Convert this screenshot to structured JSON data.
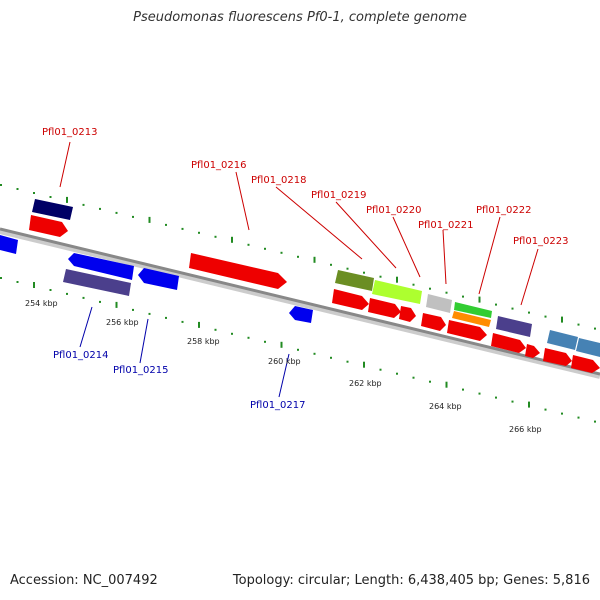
{
  "title": "Pseudomonas fluorescens Pf0-1, complete genome",
  "footer": {
    "accession": "Accession: NC_007492",
    "topology": "Topology: circular; Length: 6,438,405 bp; Genes: 5,816"
  },
  "axis": {
    "ticks": [
      "254 kbp",
      "256 kbp",
      "258 kbp",
      "260 kbp",
      "262 kbp",
      "264 kbp",
      "266 kbp"
    ]
  },
  "gene_labels": [
    {
      "text": "Pfl01_0213",
      "color": "#cc0000"
    },
    {
      "text": "Pfl01_0214",
      "color": "#0000aa"
    },
    {
      "text": "Pfl01_0215",
      "color": "#0000aa"
    },
    {
      "text": "Pfl01_0216",
      "color": "#cc0000"
    },
    {
      "text": "Pfl01_0217",
      "color": "#0000aa"
    },
    {
      "text": "Pfl01_0218",
      "color": "#cc0000"
    },
    {
      "text": "Pfl01_0219",
      "color": "#cc0000"
    },
    {
      "text": "Pfl01_0220",
      "color": "#cc0000"
    },
    {
      "text": "Pfl01_0221",
      "color": "#cc0000"
    },
    {
      "text": "Pfl01_0222",
      "color": "#cc0000"
    },
    {
      "text": "Pfl01_0223",
      "color": "#cc0000"
    }
  ],
  "colors": {
    "forward_strand": "#ee0000",
    "reverse_strand": "#0000ee",
    "backbone": "#888888",
    "ruler": "#228b22",
    "navy": "#000066",
    "slate_blue": "#4b3f8c",
    "olive": "#6b8e23",
    "yellow_green": "#adff2f",
    "light_gray": "#c0c0c0",
    "green": "#32cd32",
    "orange": "#ff8c00",
    "steel_blue": "#4682b4"
  }
}
